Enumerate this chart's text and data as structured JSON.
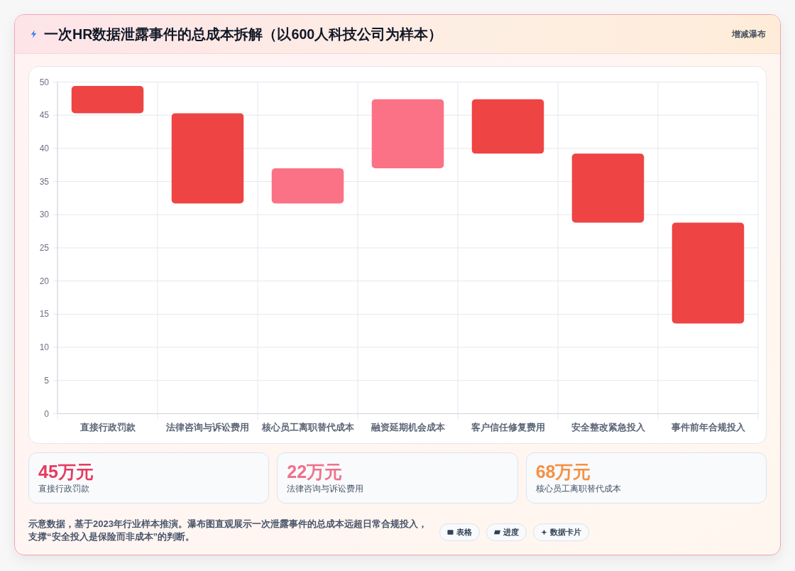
{
  "chart_data": [
    {
      "type": "bar",
      "title": "一次HR数据泄露事件的总成本拆解（以600人科技公司为样本）",
      "subtitle": "增减瀑布",
      "categories": [
        "直接行政罚款",
        "法律咨询与诉讼费用",
        "核心员工离职替代成本",
        "融资延期机会成本",
        "客户信任修复费用",
        "安全整改紧急投入",
        "事件前年合规投入"
      ],
      "base": [
        49.4,
        45.3,
        31.7,
        37.0,
        47.4,
        39.2,
        28.8
      ],
      "values": [
        -4.1,
        -13.6,
        5.3,
        10.4,
        -8.2,
        -10.4,
        -15.2
      ],
      "colors": [
        "#ef4444",
        "#ef4444",
        "#fb7185",
        "#fb7185",
        "#ef4444",
        "#ef4444",
        "#ef4444"
      ],
      "ylim": [
        0,
        50
      ],
      "yticks": [
        0,
        5,
        10,
        15,
        20,
        25,
        30,
        35,
        40,
        45,
        50
      ],
      "grid": true,
      "annotations": [
        "示意数据，基于2023年行业样本推演。瀑布图直观展示一次泄露事件的总成本远超日常合规投入，支撑“安全投入是保险而非成本”的判断。",
        "表格",
        "进度",
        "数据卡片"
      ]
    },
    {
      "type": "other",
      "categories": [
        "直接行政罚款",
        "法律咨询与诉讼费用",
        "核心员工离职替代成本"
      ],
      "value_labels": [
        "45万元",
        "22万元",
        "68万元"
      ]
    }
  ]
}
